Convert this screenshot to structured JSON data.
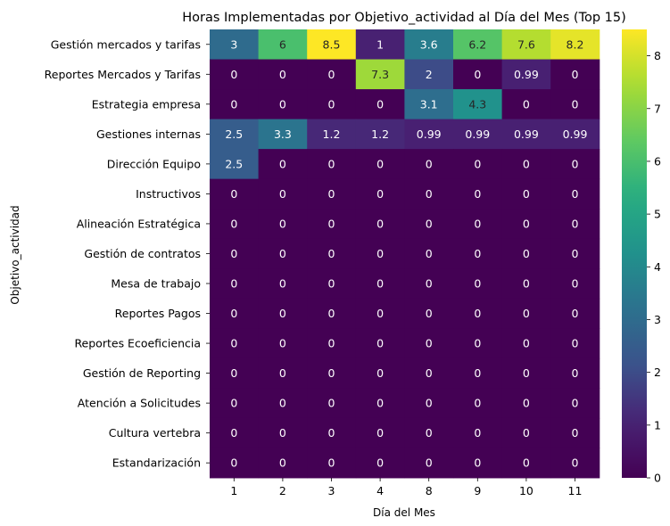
{
  "chart_data": {
    "type": "heatmap",
    "title": "Horas Implementadas por Objetivo_actividad al Día del Mes (Top 15)",
    "xlabel": "Día del Mes",
    "ylabel": "Objetivo_actividad",
    "x": [
      "1",
      "2",
      "3",
      "4",
      "8",
      "9",
      "10",
      "11"
    ],
    "y": [
      "Gestión mercados y tarifas",
      "Reportes Mercados y Tarifas",
      "Estrategia empresa",
      "Gestiones internas",
      "Dirección Equipo",
      "Instructivos",
      "Alineación Estratégica",
      "Gestión de contratos",
      "Mesa de trabajo",
      "Reportes Pagos",
      "Reportes Ecoeficiencia",
      "Gestión de Reporting",
      "Atención a Solicitudes",
      "Cultura vertebra",
      "Estandarización"
    ],
    "values": [
      [
        3,
        6,
        8.5,
        1,
        3.6,
        6.2,
        7.6,
        8.2
      ],
      [
        0,
        0,
        0,
        7.3,
        2,
        0,
        0.99,
        0
      ],
      [
        0,
        0,
        0,
        0,
        3.1,
        4.3,
        0,
        0
      ],
      [
        2.5,
        3.3,
        1.2,
        1.2,
        0.99,
        0.99,
        0.99,
        0.99
      ],
      [
        2.5,
        0,
        0,
        0,
        0,
        0,
        0,
        0
      ],
      [
        0,
        0,
        0,
        0,
        0,
        0,
        0,
        0
      ],
      [
        0,
        0,
        0,
        0,
        0,
        0,
        0,
        0
      ],
      [
        0,
        0,
        0,
        0,
        0,
        0,
        0,
        0
      ],
      [
        0,
        0,
        0,
        0,
        0,
        0,
        0,
        0
      ],
      [
        0,
        0,
        0,
        0,
        0,
        0,
        0,
        0
      ],
      [
        0,
        0,
        0,
        0,
        0,
        0,
        0,
        0
      ],
      [
        0,
        0,
        0,
        0,
        0,
        0,
        0,
        0
      ],
      [
        0,
        0,
        0,
        0,
        0,
        0,
        0,
        0
      ],
      [
        0,
        0,
        0,
        0,
        0,
        0,
        0,
        0
      ],
      [
        0,
        0,
        0,
        0,
        0,
        0,
        0,
        0
      ]
    ],
    "colormap": "viridis",
    "vmin": 0,
    "vmax": 8.5,
    "colorbar_ticks": [
      "0",
      "1",
      "2",
      "3",
      "4",
      "5",
      "6",
      "7",
      "8"
    ],
    "annotation_color_light": "#ffffff",
    "annotation_color_dark": "#262626"
  }
}
